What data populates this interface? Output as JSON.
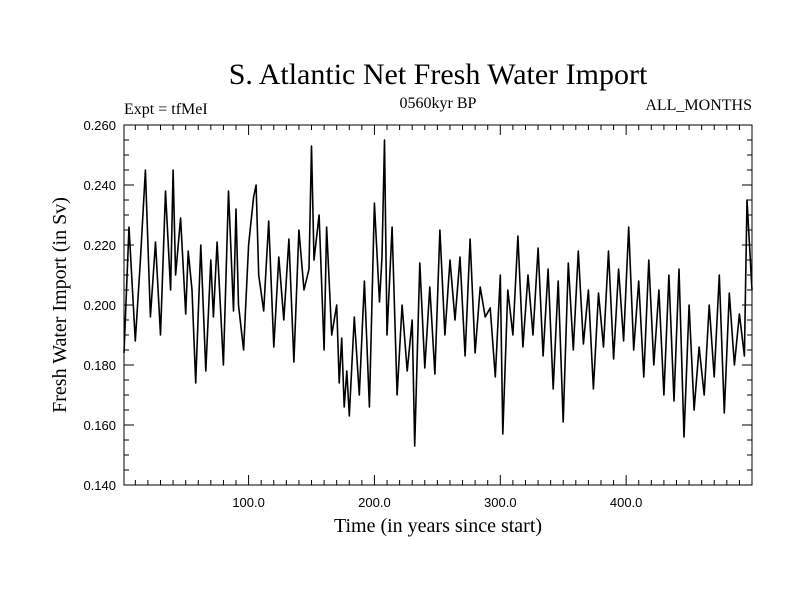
{
  "chart_data": {
    "type": "line",
    "title": "S. Atlantic Net Fresh Water Import",
    "subtitle_left": "Expt = tfMeI",
    "subtitle_center": "0560kyr BP",
    "subtitle_right": "ALL_MONTHS",
    "xlabel": "Time (in years since start)",
    "ylabel": "Fresh Water Import (in Sv)",
    "xlim": [
      1,
      500
    ],
    "ylim": [
      0.14,
      0.26
    ],
    "xticks": [
      100,
      200,
      300,
      400
    ],
    "xtick_labels": [
      "100.0",
      "200.0",
      "300.0",
      "400.0"
    ],
    "yticks": [
      0.14,
      0.16,
      0.18,
      0.2,
      0.22,
      0.24,
      0.26
    ],
    "ytick_labels": [
      "0.140",
      "0.160",
      "0.180",
      "0.200",
      "0.220",
      "0.240",
      "0.260"
    ],
    "grid": false,
    "line_color": "#000000",
    "series": [
      {
        "x": [
          1,
          5,
          10,
          14,
          18,
          22,
          26,
          30,
          34,
          38,
          40,
          42,
          46,
          50,
          52,
          55,
          58,
          62,
          66,
          70,
          72,
          75,
          80,
          84,
          88,
          90,
          92,
          96,
          100,
          104,
          106,
          108,
          112,
          116,
          120,
          124,
          128,
          132,
          136,
          140,
          144,
          148,
          150,
          152,
          156,
          160,
          162,
          166,
          170,
          172,
          174,
          176,
          178,
          180,
          184,
          188,
          192,
          196,
          200,
          204,
          206,
          208,
          210,
          214,
          218,
          222,
          226,
          230,
          232,
          236,
          240,
          244,
          248,
          252,
          256,
          260,
          264,
          268,
          272,
          276,
          280,
          284,
          288,
          292,
          296,
          300,
          302,
          306,
          310,
          314,
          318,
          322,
          326,
          330,
          334,
          338,
          342,
          346,
          350,
          354,
          358,
          362,
          366,
          370,
          374,
          378,
          382,
          386,
          390,
          394,
          398,
          402,
          406,
          410,
          414,
          418,
          422,
          426,
          430,
          434,
          438,
          442,
          446,
          450,
          454,
          458,
          462,
          466,
          470,
          474,
          478,
          482,
          486,
          490,
          494,
          496,
          500
        ],
        "y": [
          0.184,
          0.226,
          0.188,
          0.215,
          0.245,
          0.196,
          0.221,
          0.19,
          0.238,
          0.205,
          0.245,
          0.21,
          0.229,
          0.197,
          0.218,
          0.205,
          0.174,
          0.22,
          0.178,
          0.215,
          0.196,
          0.221,
          0.18,
          0.238,
          0.198,
          0.232,
          0.2,
          0.185,
          0.22,
          0.236,
          0.24,
          0.21,
          0.198,
          0.228,
          0.186,
          0.216,
          0.195,
          0.222,
          0.181,
          0.225,
          0.205,
          0.212,
          0.253,
          0.215,
          0.23,
          0.185,
          0.226,
          0.19,
          0.2,
          0.174,
          0.189,
          0.166,
          0.178,
          0.163,
          0.196,
          0.17,
          0.208,
          0.166,
          0.234,
          0.201,
          0.216,
          0.255,
          0.19,
          0.226,
          0.17,
          0.2,
          0.178,
          0.195,
          0.153,
          0.214,
          0.179,
          0.206,
          0.177,
          0.225,
          0.19,
          0.215,
          0.195,
          0.216,
          0.183,
          0.222,
          0.184,
          0.206,
          0.196,
          0.199,
          0.176,
          0.21,
          0.157,
          0.205,
          0.19,
          0.223,
          0.186,
          0.21,
          0.19,
          0.219,
          0.183,
          0.212,
          0.172,
          0.208,
          0.161,
          0.214,
          0.185,
          0.218,
          0.187,
          0.205,
          0.172,
          0.204,
          0.186,
          0.218,
          0.182,
          0.212,
          0.188,
          0.226,
          0.185,
          0.208,
          0.176,
          0.215,
          0.18,
          0.205,
          0.17,
          0.21,
          0.168,
          0.212,
          0.156,
          0.2,
          0.165,
          0.186,
          0.17,
          0.2,
          0.176,
          0.21,
          0.164,
          0.204,
          0.18,
          0.197,
          0.183,
          0.235,
          0.205
        ]
      }
    ]
  }
}
